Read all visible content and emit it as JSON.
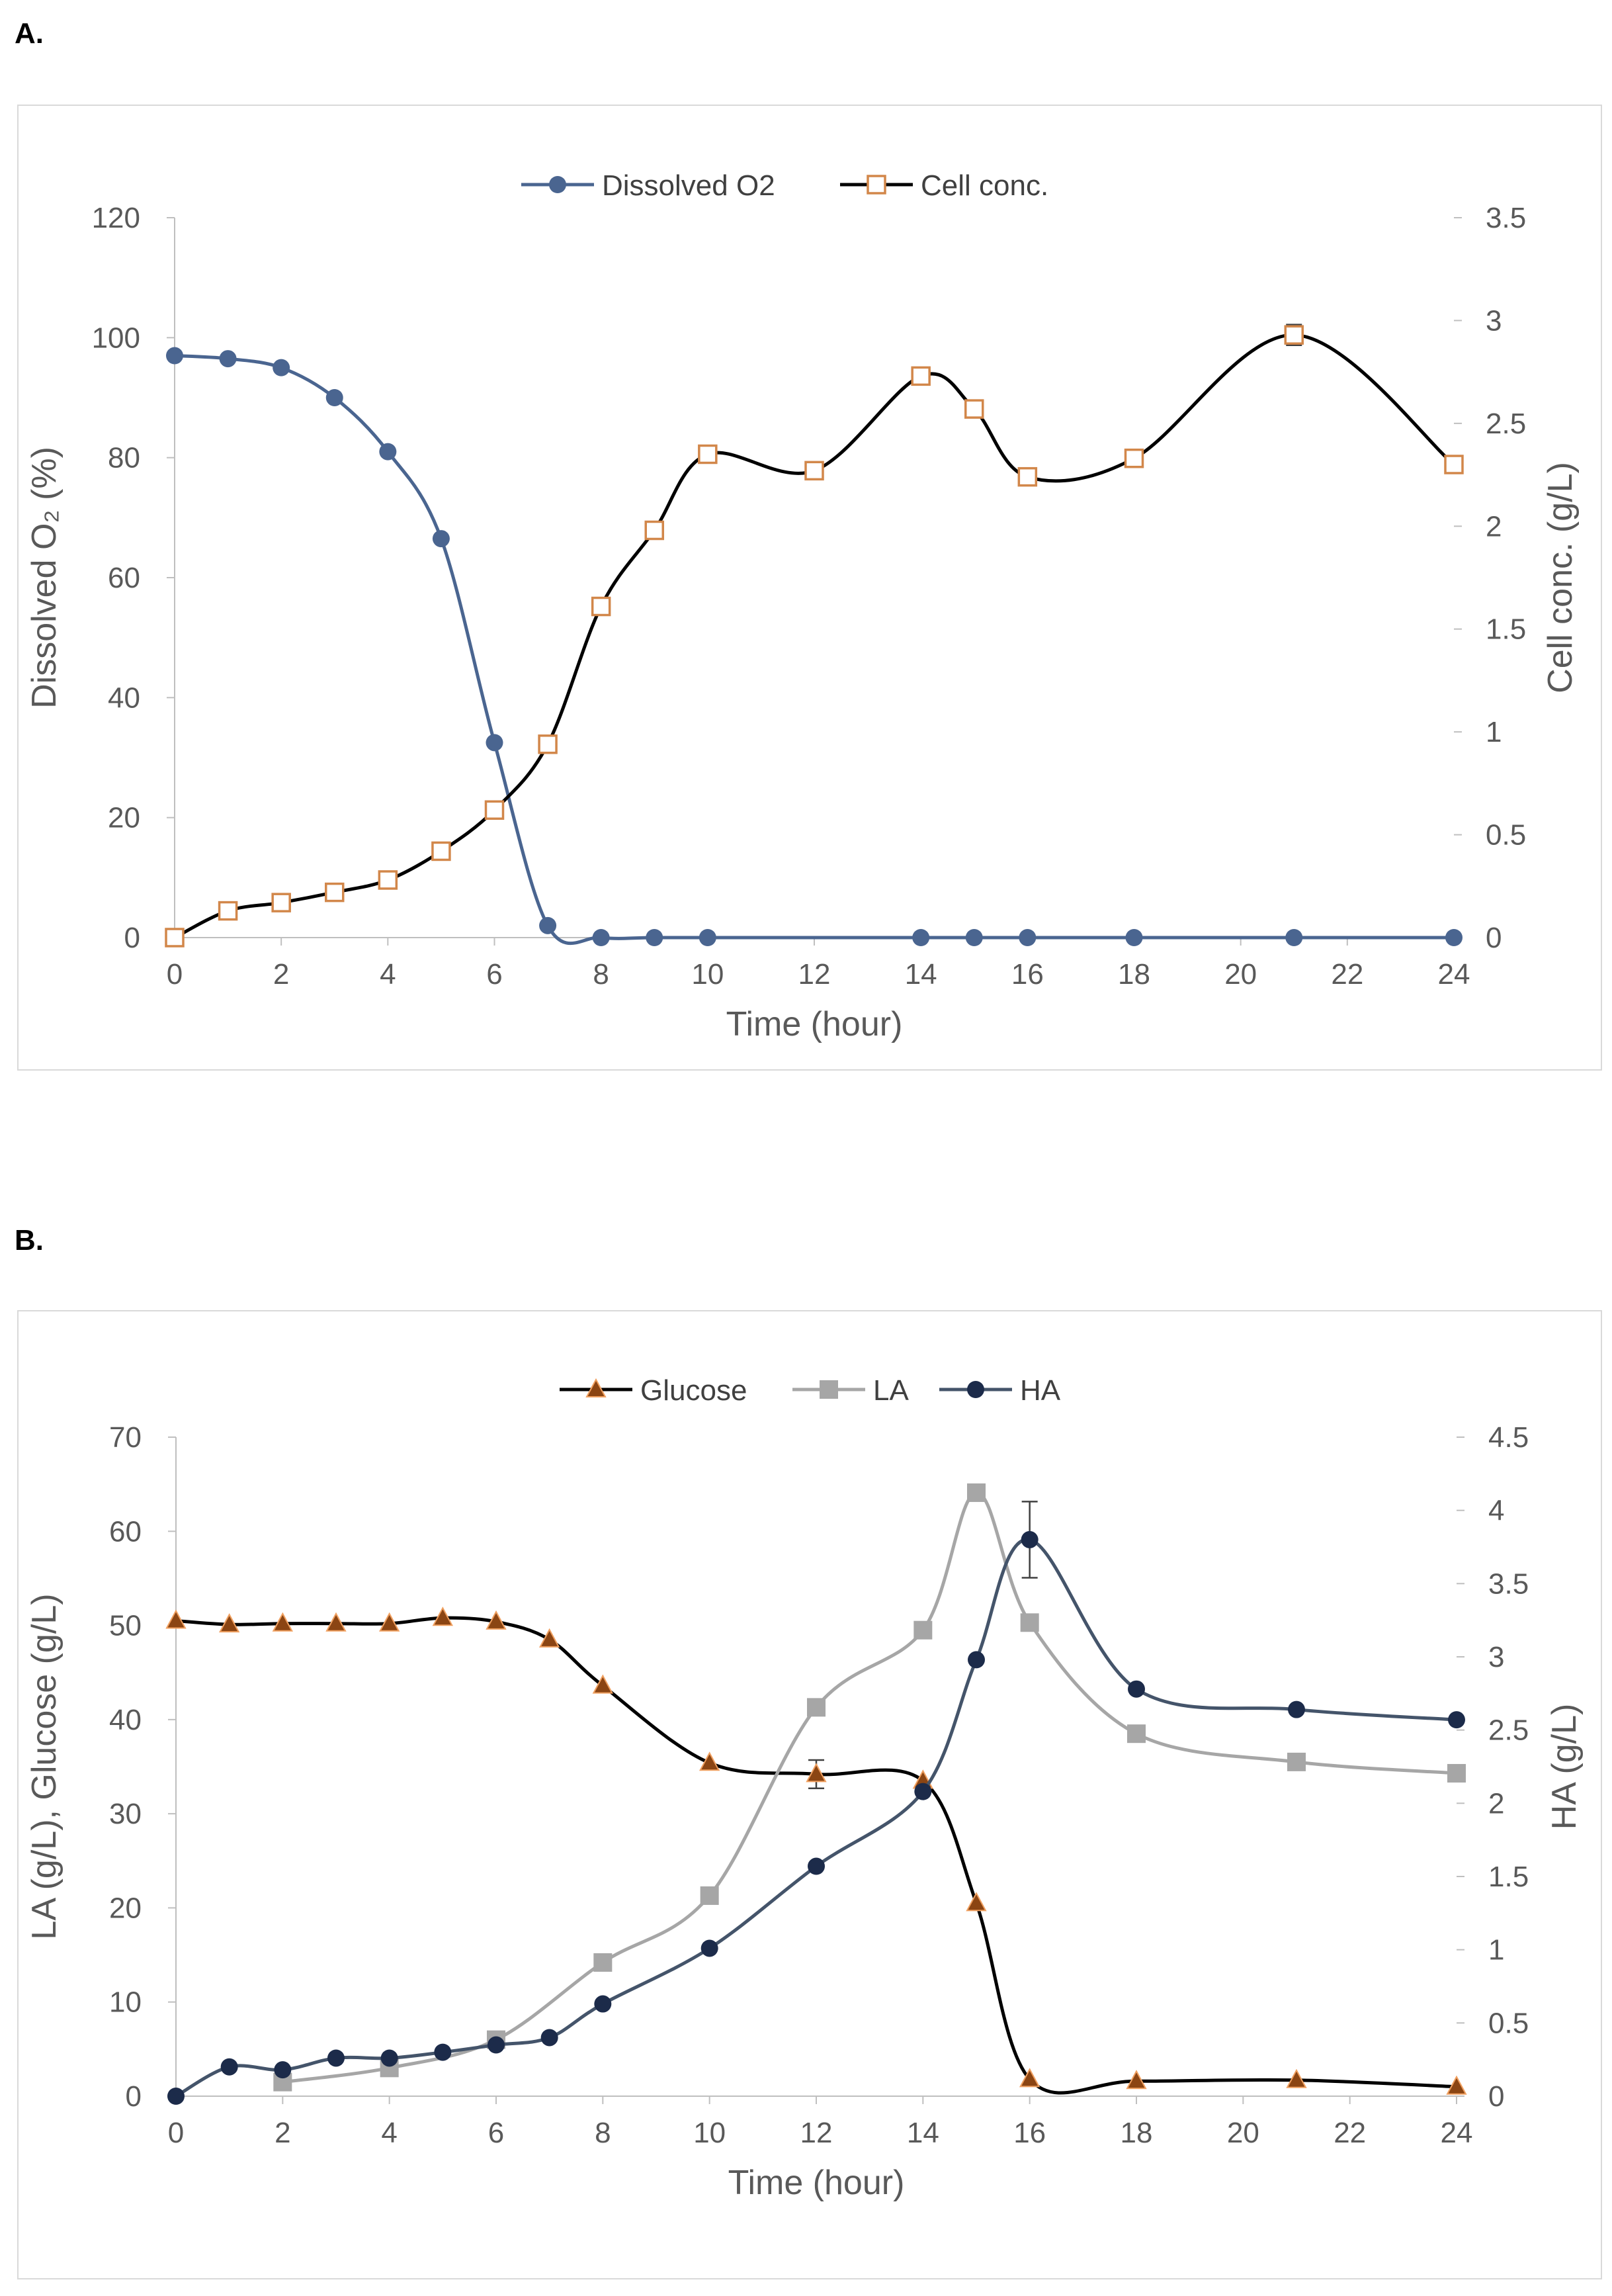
{
  "panels": [
    {
      "label": "A."
    },
    {
      "label": "B."
    }
  ],
  "chart_data": [
    {
      "type": "line",
      "title": "",
      "xlabel": "Time (hour)",
      "ylabel": "Dissolved O₂ (%)",
      "y2label": "Cell conc. (g/L)",
      "xlim": [
        0,
        24
      ],
      "ylim": [
        0,
        120
      ],
      "y2lim": [
        0,
        3.5
      ],
      "x_ticks": [
        0,
        2,
        4,
        6,
        8,
        10,
        12,
        14,
        16,
        18,
        20,
        22,
        24
      ],
      "y_ticks": [
        0,
        20,
        40,
        60,
        80,
        100,
        120
      ],
      "y2_ticks": [
        0,
        0.5,
        1,
        1.5,
        2,
        2.5,
        3,
        3.5
      ],
      "legend_position": "top-center",
      "series": [
        {
          "name": "Dissolved O2",
          "axis": "left",
          "color": "#4a6590",
          "marker": "circle",
          "x": [
            0,
            1,
            2,
            3,
            4,
            5,
            6,
            7,
            8,
            9,
            10,
            14,
            15,
            16,
            18,
            21,
            24
          ],
          "values": [
            97,
            96.5,
            95,
            90,
            81,
            66.5,
            32.5,
            2,
            0,
            0,
            0,
            0,
            0,
            0,
            0,
            0,
            0
          ]
        },
        {
          "name": "Cell conc.",
          "axis": "right",
          "color": "#000000",
          "marker_color": "#d2874a",
          "marker": "open-square",
          "x": [
            0,
            1,
            2,
            3,
            4,
            5,
            6,
            7,
            8,
            9,
            10,
            12,
            14,
            15,
            16,
            18,
            21,
            24
          ],
          "values": [
            0,
            0.13,
            0.17,
            0.22,
            0.28,
            0.42,
            0.62,
            0.94,
            1.61,
            1.98,
            2.35,
            2.27,
            2.73,
            2.57,
            2.24,
            2.33,
            2.93,
            2.3
          ],
          "error": [
            0,
            0,
            0,
            0,
            0,
            0,
            0,
            0.02,
            0,
            0,
            0,
            0,
            0.02,
            0,
            0,
            0,
            0.05,
            0
          ]
        }
      ]
    },
    {
      "type": "line",
      "title": "",
      "xlabel": "Time (hour)",
      "ylabel": "LA (g/L), Glucose (g/L)",
      "y2label": "HA (g/L)",
      "xlim": [
        0,
        24
      ],
      "ylim": [
        0,
        70
      ],
      "y2lim": [
        0,
        4.5
      ],
      "x_ticks": [
        0,
        2,
        4,
        6,
        8,
        10,
        12,
        14,
        16,
        18,
        20,
        22,
        24
      ],
      "y_ticks": [
        0,
        10,
        20,
        30,
        40,
        50,
        60,
        70
      ],
      "y2_ticks": [
        0,
        0.5,
        1,
        1.5,
        2,
        2.5,
        3,
        3.5,
        4,
        4.5
      ],
      "legend_position": "top-center",
      "series": [
        {
          "name": "Glucose",
          "axis": "left",
          "color": "#000000",
          "marker_color": "#8b4513",
          "marker": "triangle",
          "x": [
            0,
            1,
            2,
            3,
            4,
            5,
            6,
            7,
            8,
            10,
            12,
            14,
            15,
            16,
            18,
            21,
            24
          ],
          "values": [
            50.5,
            50.1,
            50.2,
            50.2,
            50.2,
            50.8,
            50.4,
            48.5,
            43.6,
            35.4,
            34.2,
            33.5,
            20.5,
            1.8,
            1.6,
            1.7,
            1.0
          ],
          "error": [
            0,
            0,
            0,
            0,
            0,
            0,
            0,
            0,
            0,
            0,
            1.5,
            0,
            0,
            0,
            0,
            0,
            0
          ]
        },
        {
          "name": "LA",
          "axis": "left",
          "color": "#a6a6a6",
          "marker": "square",
          "x": [
            2,
            4,
            6,
            8,
            10,
            12,
            14,
            15,
            16,
            18,
            21,
            24
          ],
          "values": [
            1.5,
            3.0,
            6.0,
            14.2,
            21.3,
            41.3,
            49.5,
            64.1,
            50.3,
            38.5,
            35.5,
            34.3
          ]
        },
        {
          "name": "HA",
          "axis": "right",
          "color": "#44546a",
          "marker_color": "#1c2b4a",
          "marker": "circle",
          "x": [
            0,
            1,
            2,
            3,
            4,
            5,
            6,
            7,
            8,
            10,
            12,
            14,
            15,
            16,
            18,
            21,
            24
          ],
          "values": [
            0.0,
            0.2,
            0.18,
            0.26,
            0.26,
            0.3,
            0.35,
            0.4,
            0.63,
            1.01,
            1.57,
            2.08,
            2.98,
            3.8,
            2.78,
            2.64,
            2.57
          ],
          "error": [
            0,
            0,
            0,
            0,
            0,
            0,
            0,
            0,
            0,
            0,
            0,
            0,
            0,
            0.26,
            0,
            0,
            0
          ]
        }
      ]
    }
  ]
}
